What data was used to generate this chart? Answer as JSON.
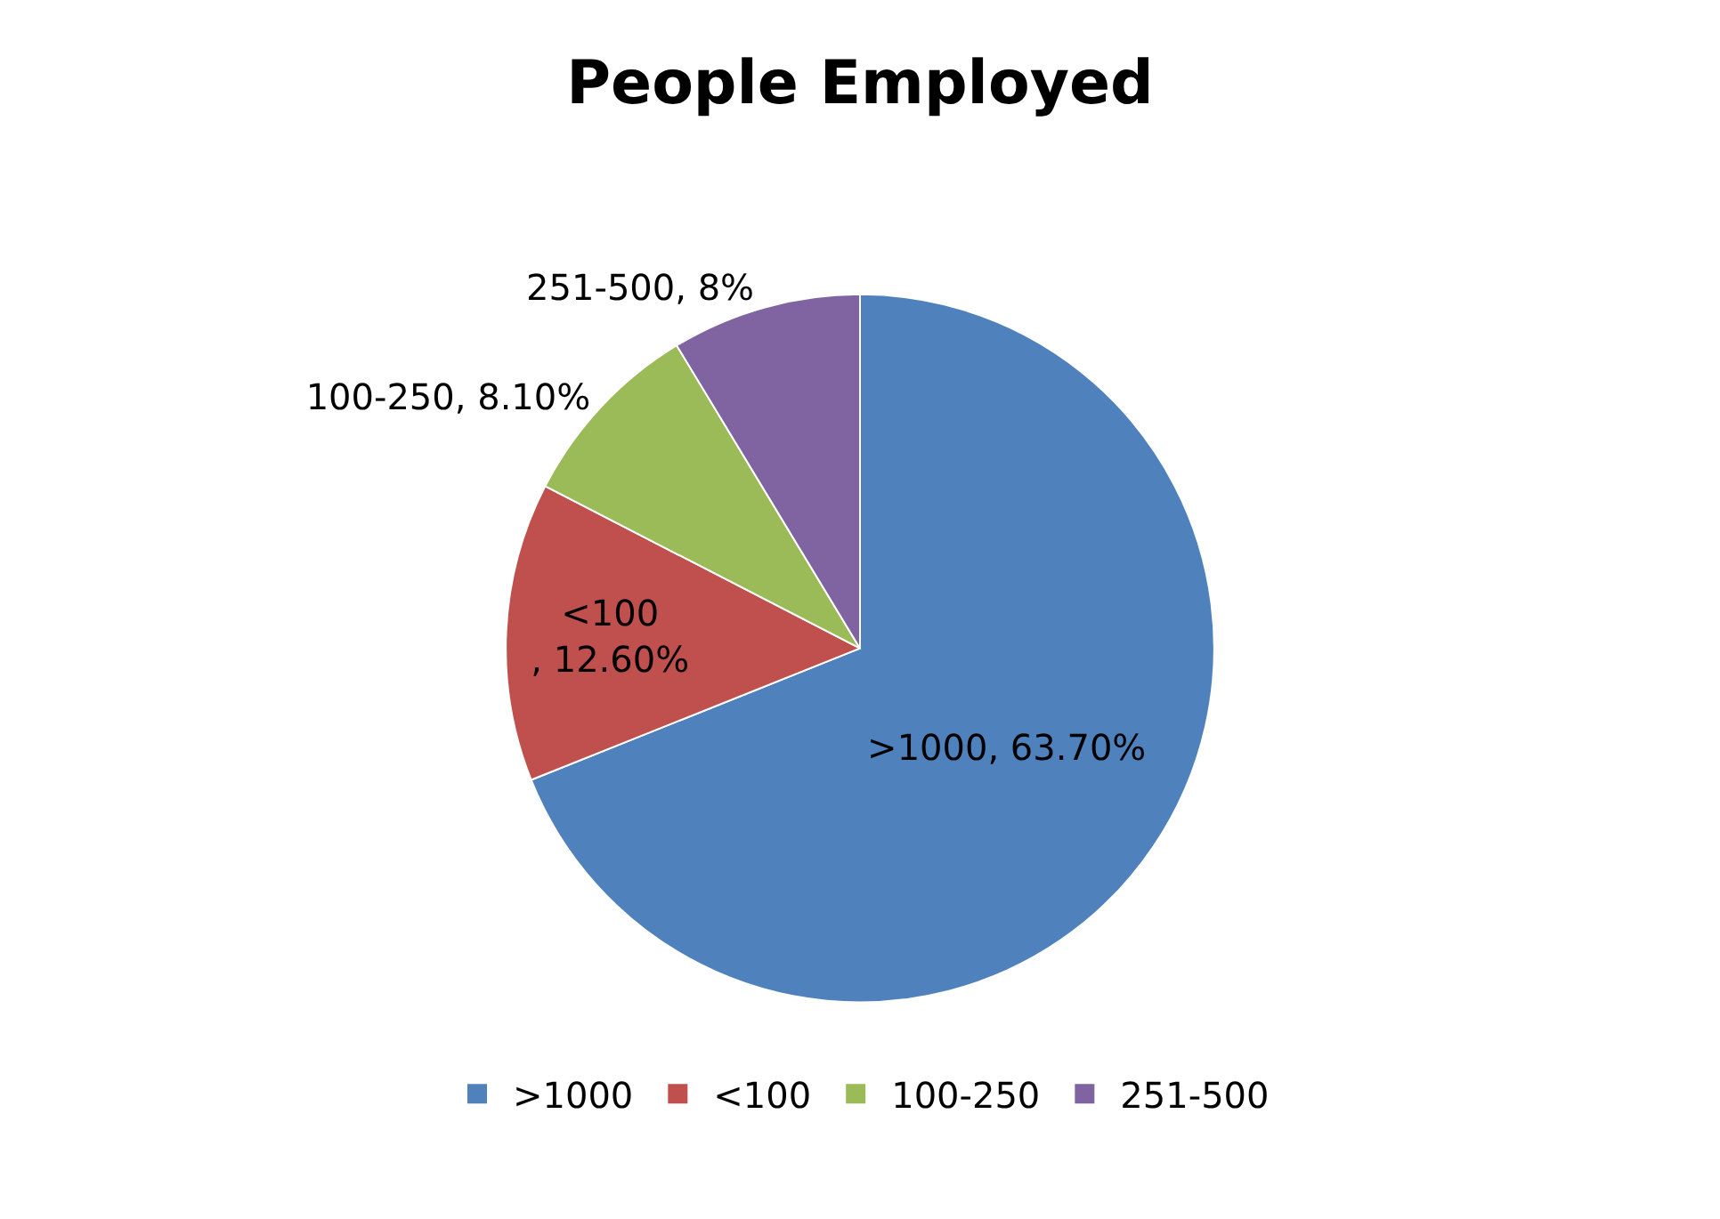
{
  "chart_data": {
    "type": "pie",
    "title": "People Employed",
    "categories": [
      ">1000",
      "<100",
      "100-250",
      "251-500"
    ],
    "values": [
      63.7,
      12.6,
      8.1,
      8
    ],
    "value_labels": [
      ">1000, 63.70%",
      "<100\n, 12.60%",
      "100-250, 8.10%",
      "251-500, 8%"
    ],
    "colors": [
      "#4f81bd",
      "#c0504d",
      "#9bbb59",
      "#8064a2"
    ],
    "legend": "bottom"
  }
}
